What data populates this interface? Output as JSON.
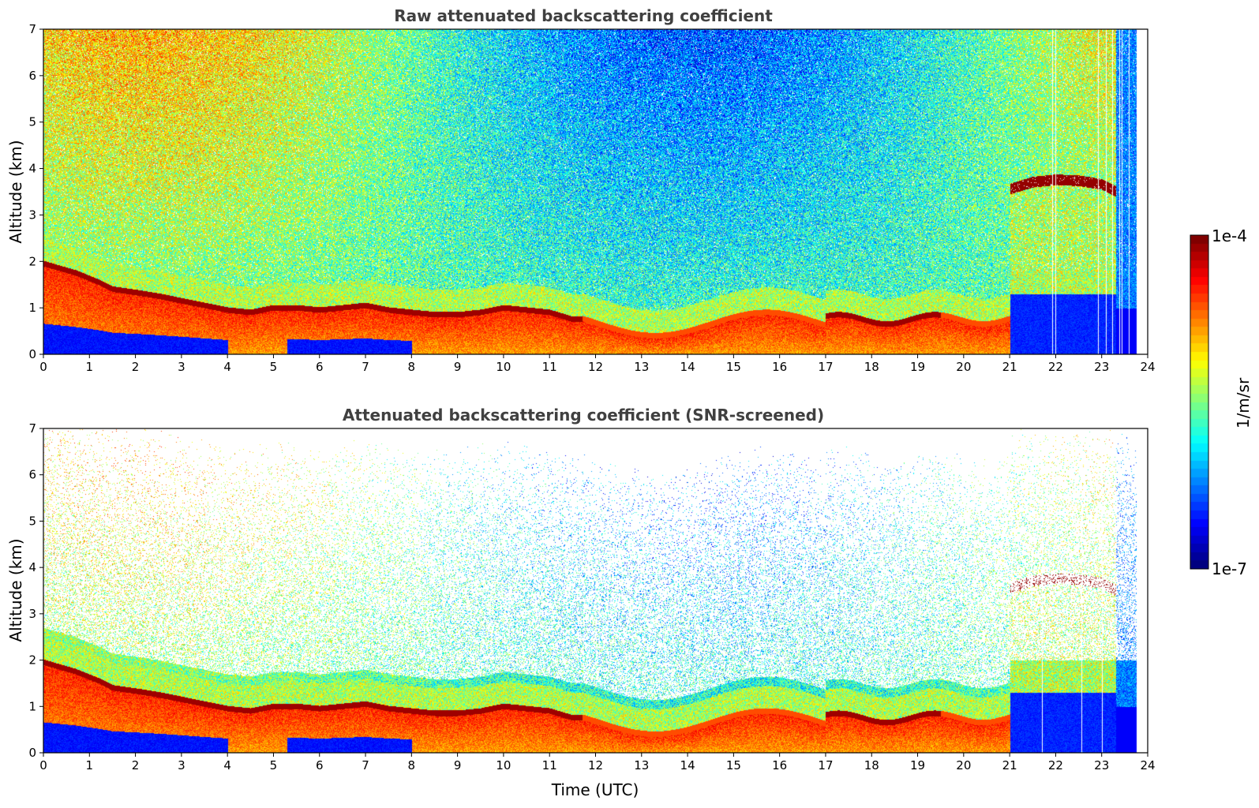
{
  "chart_data": [
    {
      "type": "heatmap",
      "title": "Raw attenuated backscattering coefficient",
      "xlabel": "",
      "ylabel": "Altitude (km)",
      "xlim": [
        0,
        24
      ],
      "ylim": [
        0,
        7
      ],
      "xticks": [
        "0",
        "1",
        "2",
        "3",
        "4",
        "5",
        "6",
        "7",
        "8",
        "9",
        "10",
        "11",
        "12",
        "13",
        "14",
        "15",
        "16",
        "17",
        "18",
        "19",
        "20",
        "21",
        "22",
        "23",
        "24"
      ],
      "yticks": [
        "0",
        "1",
        "2",
        "3",
        "4",
        "5",
        "6",
        "7"
      ],
      "grid": false,
      "screened": false,
      "layers": {
        "cloud_top_time_utc": [
          0,
          0.7,
          1.2,
          1.5,
          2.0,
          2.5,
          3.0,
          3.5,
          4.0,
          4.5,
          5.0,
          5.5,
          6.0,
          6.5,
          7.0,
          7.5,
          8.0,
          8.5,
          9.0,
          9.5,
          10.0,
          10.5,
          11.0,
          11.5
        ],
        "cloud_top_altitude_km": [
          1.9,
          1.7,
          1.5,
          1.35,
          1.28,
          1.2,
          1.1,
          1.0,
          0.9,
          0.85,
          0.95,
          0.95,
          0.9,
          0.95,
          1.0,
          0.9,
          0.85,
          0.8,
          0.8,
          0.85,
          0.95,
          0.9,
          0.85,
          0.7
        ],
        "upper_layer_time_utc": [
          21.0,
          21.5,
          22.0,
          22.5,
          23.0,
          23.3
        ],
        "upper_layer_altitude_km": [
          3.6,
          3.75,
          3.8,
          3.78,
          3.7,
          3.55
        ]
      }
    },
    {
      "type": "heatmap",
      "title": "Attenuated backscattering coefficient (SNR-screened)",
      "xlabel": "Time (UTC)",
      "ylabel": "Altitude (km)",
      "xlim": [
        0,
        24
      ],
      "ylim": [
        0,
        7
      ],
      "xticks": [
        "0",
        "1",
        "2",
        "3",
        "4",
        "5",
        "6",
        "7",
        "8",
        "9",
        "10",
        "11",
        "12",
        "13",
        "14",
        "15",
        "16",
        "17",
        "18",
        "19",
        "20",
        "21",
        "22",
        "23",
        "24"
      ],
      "yticks": [
        "0",
        "1",
        "2",
        "3",
        "4",
        "5",
        "6",
        "7"
      ],
      "grid": false,
      "screened": true
    }
  ],
  "colorbar": {
    "label": "1/m/sr",
    "min_label": "1e-7",
    "max_label": "1e-4",
    "colormap": "jet",
    "scale": "log",
    "min": 1e-07,
    "max": 0.0001
  },
  "colors": {
    "title": "#404040",
    "axis": "#000000",
    "background": "#ffffff"
  }
}
